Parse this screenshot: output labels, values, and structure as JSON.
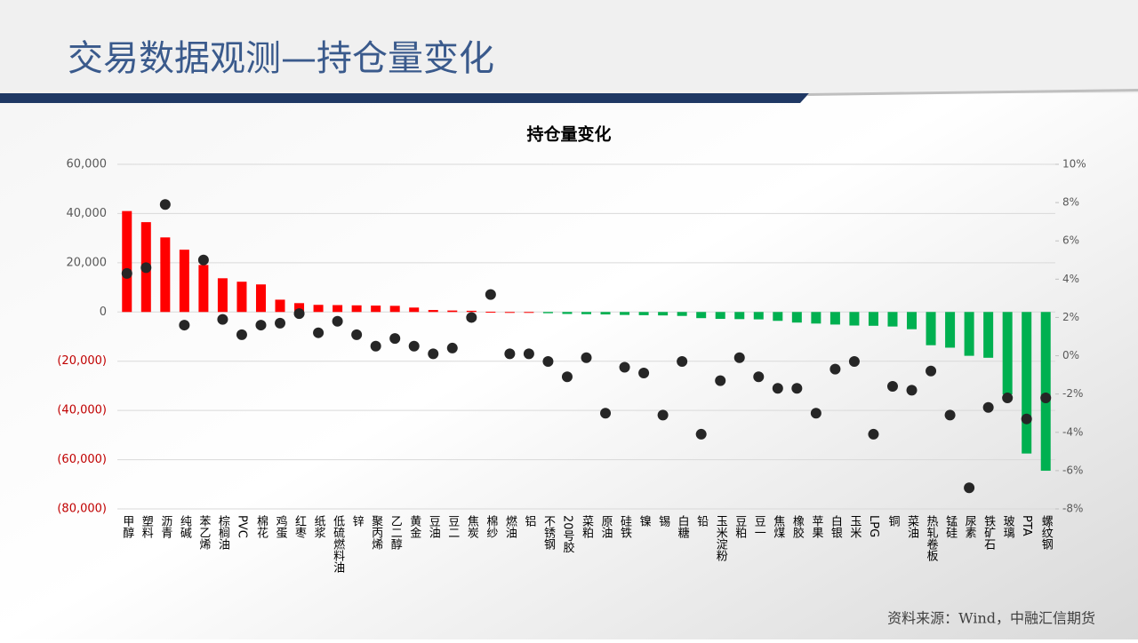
{
  "header": {
    "title": "交易数据观测—持仓量变化"
  },
  "footer": {
    "source": "资料来源：Wind，中融汇信期货"
  },
  "chart_data": {
    "type": "combo",
    "title": "持仓量变化",
    "categories": [
      "甲醇",
      "塑料",
      "沥青",
      "纯碱",
      "苯乙烯",
      "棕榈油",
      "PVC",
      "棉花",
      "鸡蛋",
      "红枣",
      "纸浆",
      "低硫燃料油",
      "锌",
      "聚丙烯",
      "乙二醇",
      "黄金",
      "豆油",
      "豆二",
      "焦炭",
      "棉纱",
      "燃油",
      "铝",
      "不锈钢",
      "20号胶",
      "菜粕",
      "原油",
      "硅铁",
      "镍",
      "锡",
      "白糖",
      "铅",
      "玉米淀粉",
      "豆粕",
      "豆一",
      "焦煤",
      "橡胶",
      "苹果",
      "白银",
      "玉米",
      "LPG",
      "铜",
      "菜油",
      "热轧卷板",
      "锰硅",
      "尿素",
      "铁矿石",
      "玻璃",
      "PTA",
      "螺纹钢"
    ],
    "series": [
      {
        "type": "bar",
        "color": "#ff0000",
        "negative_color": "#00b050",
        "values": [
          41000,
          36500,
          30300,
          25300,
          19100,
          13700,
          12300,
          11200,
          5000,
          3600,
          2900,
          2800,
          2700,
          2600,
          2500,
          1800,
          800,
          600,
          500,
          100,
          0,
          0,
          -500,
          -800,
          -900,
          -1000,
          -1200,
          -1300,
          -1400,
          -1600,
          -2500,
          -2800,
          -2900,
          -3000,
          -3600,
          -4300,
          -4700,
          -5100,
          -5500,
          -5600,
          -5900,
          -7000,
          -13500,
          -14500,
          -17800,
          -18600,
          -33500,
          -57500,
          -64500
        ]
      },
      {
        "type": "scatter",
        "axis": "y2",
        "color": "#262626",
        "values": [
          4.3,
          4.6,
          7.9,
          1.6,
          5.0,
          1.9,
          1.1,
          1.6,
          1.7,
          2.2,
          1.2,
          1.8,
          1.1,
          0.5,
          0.9,
          0.5,
          0.1,
          0.4,
          2.0,
          3.2,
          0.1,
          0.1,
          -0.3,
          -1.1,
          -0.1,
          -3.0,
          -0.6,
          -0.9,
          -3.1,
          -0.3,
          -4.1,
          -1.3,
          -0.1,
          -1.1,
          -1.7,
          -1.7,
          -3.0,
          -0.7,
          -0.3,
          -4.1,
          -1.6,
          -1.8,
          -0.8,
          -3.1,
          -6.9,
          -2.7,
          -2.2,
          -3.3,
          -2.2
        ]
      }
    ],
    "ylim": [
      -80000,
      60000
    ],
    "yticks": [
      {
        "value": -80000,
        "label": "(80,000)"
      },
      {
        "value": -60000,
        "label": "(60,000)"
      },
      {
        "value": -40000,
        "label": "(40,000)"
      },
      {
        "value": -20000,
        "label": "(20,000)"
      },
      0,
      {
        "value": 20000,
        "label": "20,000"
      },
      {
        "value": 40000,
        "label": "40,000"
      },
      {
        "value": 60000,
        "label": "60,000"
      }
    ],
    "y2lim": [
      -8,
      10
    ],
    "y2ticks": [
      {
        "value": -8,
        "label": "-8%"
      },
      {
        "value": -6,
        "label": "-6%"
      },
      {
        "value": -4,
        "label": "-4%"
      },
      {
        "value": -2,
        "label": "-2%"
      },
      {
        "value": 0,
        "label": "0%"
      },
      {
        "value": 2,
        "label": "2%"
      },
      {
        "value": 4,
        "label": "4%"
      },
      {
        "value": 6,
        "label": "6%"
      },
      {
        "value": 8,
        "label": "8%"
      },
      {
        "value": 10,
        "label": "10%"
      }
    ],
    "grid": true,
    "negative_tick_color": "#c00000"
  }
}
